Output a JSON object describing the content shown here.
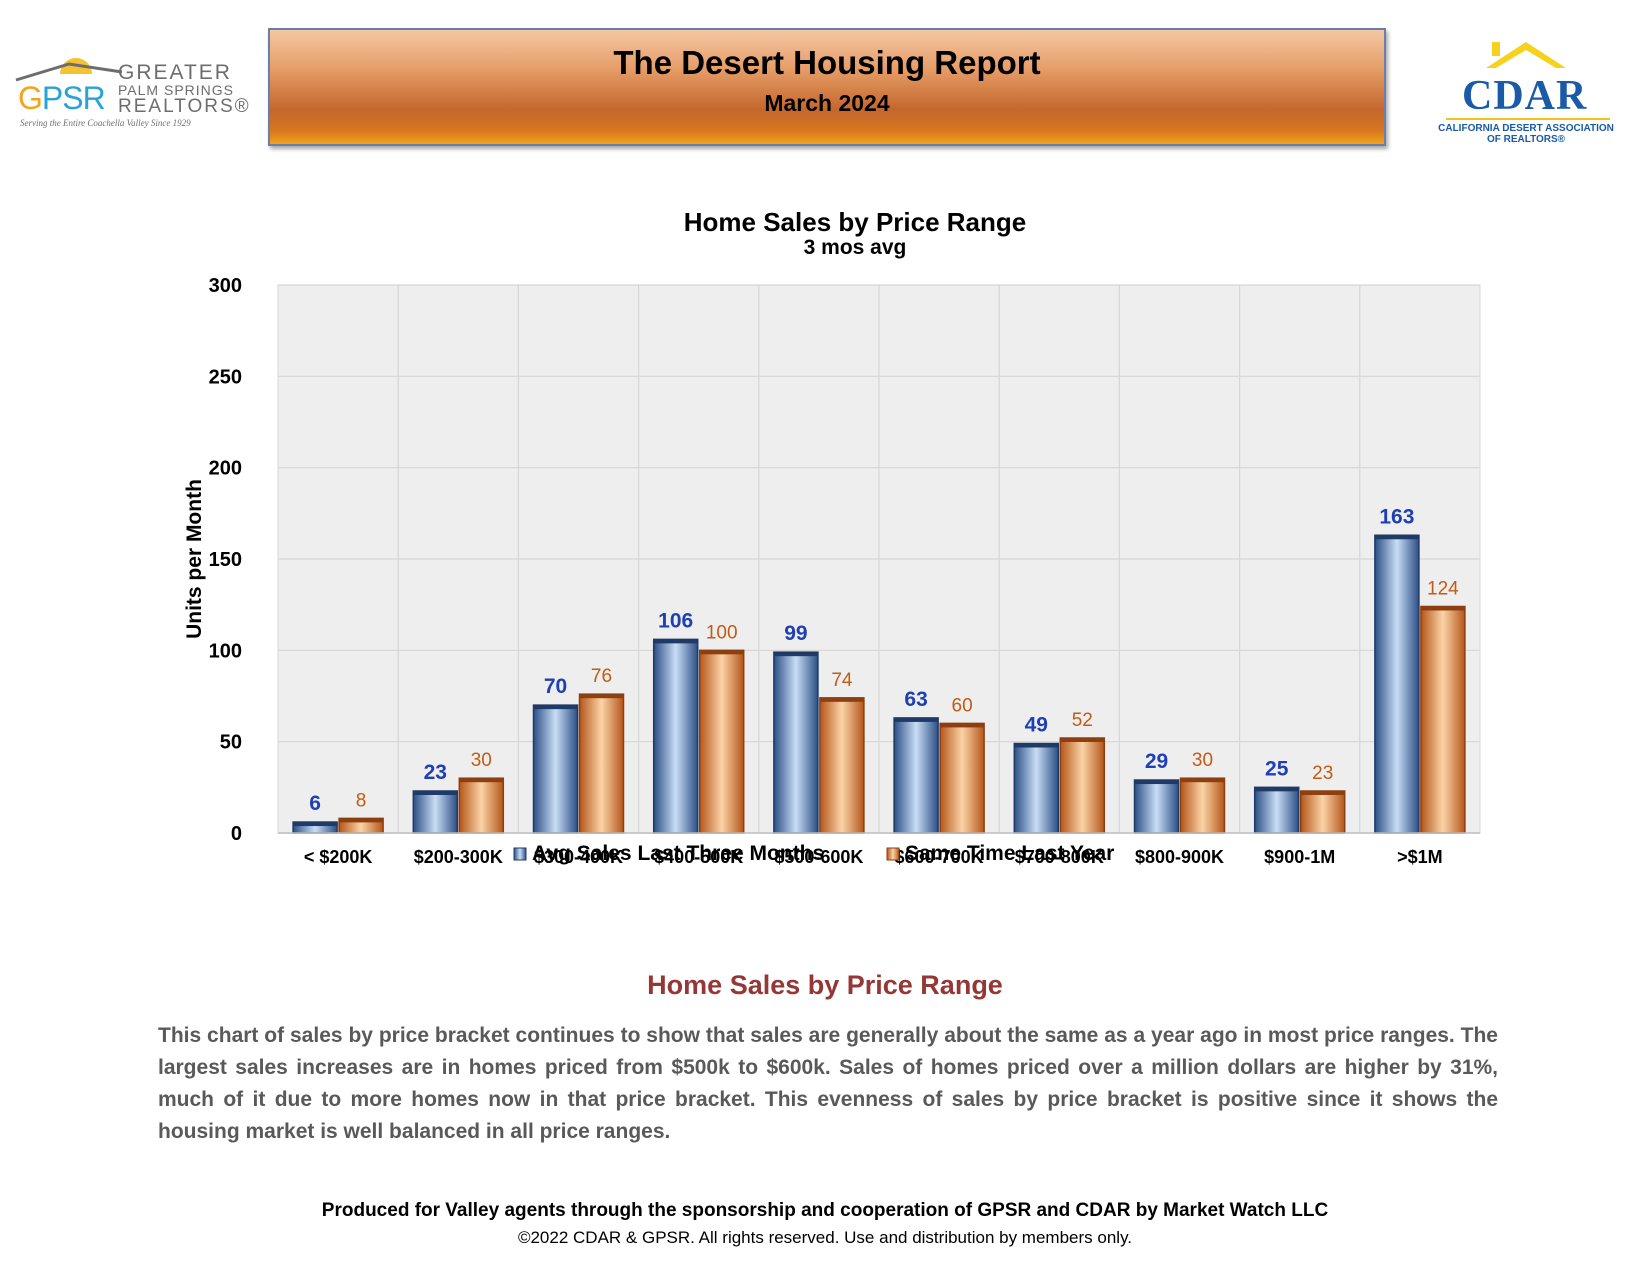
{
  "header": {
    "title": "The Desert Housing Report",
    "subtitle": "March 2024"
  },
  "logos": {
    "gpsr": {
      "mark_g": "G",
      "mark_psr": "PSR",
      "line1": "GREATER",
      "line2": "PALM SPRINGS",
      "line3": "REALTORS®",
      "tagline": "Serving the Entire Coachella Valley Since 1929"
    },
    "cdar": {
      "word": "CDAR",
      "line1": "CALIFORNIA DESERT ASSOCIATION",
      "line2": "OF REALTORS®"
    }
  },
  "chart_data": {
    "type": "bar",
    "title": "Home Sales by Price Range",
    "subtitle": "3 mos avg",
    "ylabel": "Units per Month",
    "xlabel": "",
    "ylim": [
      0,
      300
    ],
    "yticks": [
      0,
      50,
      100,
      150,
      200,
      250,
      300
    ],
    "categories": [
      "< $200K",
      "$200-300K",
      "$300-400K",
      "$400-500K",
      "$500-600K",
      "$600-700K",
      "$700-800K",
      "$800-900K",
      "$900-1M",
      ">$1M"
    ],
    "series": [
      {
        "name": "Avg Sales Last Three Months",
        "values": [
          6,
          23,
          70,
          106,
          99,
          63,
          49,
          29,
          25,
          163
        ],
        "color": "#3e6aa8",
        "label_color": "#1f3fb4"
      },
      {
        "name": "Same Time Last Year",
        "values": [
          8,
          30,
          76,
          100,
          74,
          60,
          52,
          30,
          23,
          124
        ],
        "color": "#e07b24",
        "label_color": "#c25b14"
      }
    ],
    "grid": true,
    "legend": "bottom"
  },
  "summary": {
    "title": "Home Sales by Price Range",
    "body": "This chart of sales by price bracket continues to show that sales are generally about the same as a year ago in most price ranges. The largest sales increases are in homes priced from $500k to $600k. Sales of homes priced over a million dollars are higher by 31%, much of it due to more homes now in that price bracket. This evenness of sales by price bracket is positive since it shows the housing market is well balanced in all price ranges."
  },
  "footer": {
    "line1": "Produced for Valley agents through the sponsorship and cooperation of GPSR and CDAR by Market Watch LLC",
    "line2": "©2022 CDAR & GPSR.  All rights reserved.  Use and distribution by members only."
  }
}
